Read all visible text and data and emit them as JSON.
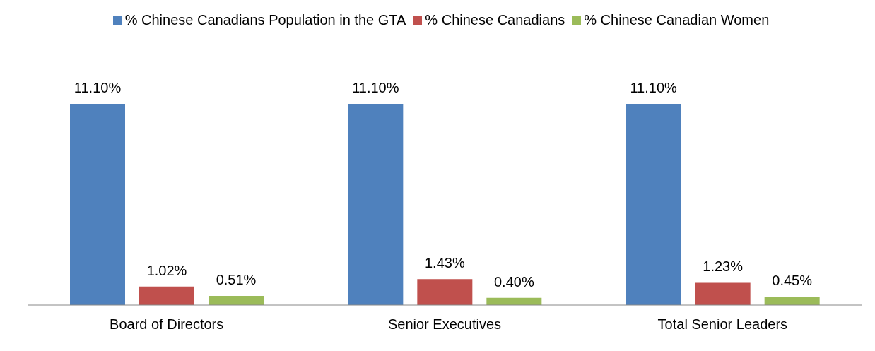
{
  "chart_data": {
    "type": "bar",
    "categories": [
      "Board of Directors",
      "Senior Executives",
      "Total Senior Leaders"
    ],
    "series": [
      {
        "name": "% Chinese Canadians Population in the GTA",
        "color": "#4f81bd",
        "values": [
          11.1,
          11.1,
          11.1
        ],
        "value_labels": [
          "11.10%",
          "11.10%",
          "11.10%"
        ]
      },
      {
        "name": "% Chinese Canadians",
        "color": "#c0504d",
        "values": [
          1.02,
          1.43,
          1.23
        ],
        "value_labels": [
          "1.02%",
          "1.43%",
          "1.23%"
        ]
      },
      {
        "name": "% Chinese Canadian Women",
        "color": "#9bbb59",
        "values": [
          0.51,
          0.4,
          0.45
        ],
        "value_labels": [
          "0.51%",
          "0.40%",
          "0.45%"
        ]
      }
    ],
    "legend": "top",
    "grid": false,
    "tick_labels": "x"
  }
}
